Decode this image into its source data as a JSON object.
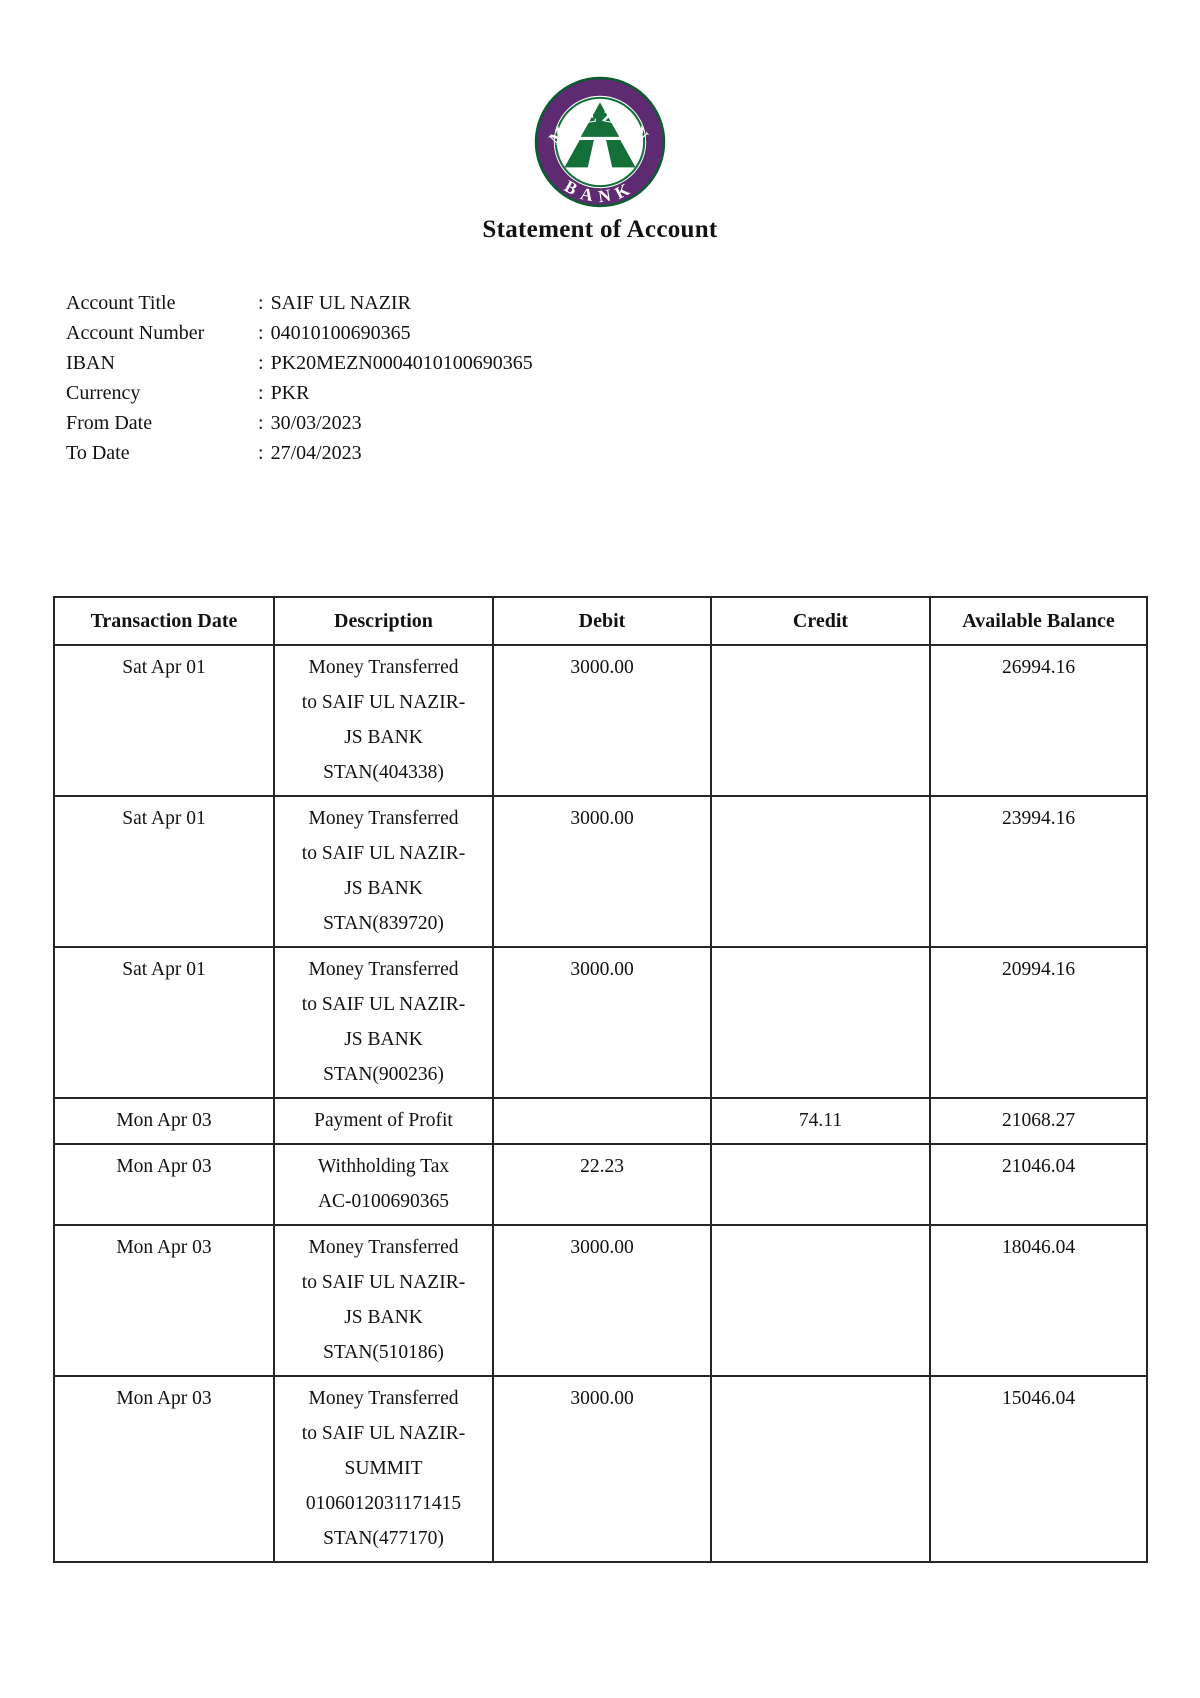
{
  "title": "Statement of Account",
  "logo": {
    "top_text": "MEEZAN",
    "bottom_text": "BANK",
    "purple": "#5e2a72",
    "green": "#156f39",
    "dark_green": "#0c5c30"
  },
  "account_info": {
    "separator": ":",
    "rows": [
      {
        "label": "Account Title",
        "value": "SAIF UL NAZIR"
      },
      {
        "label": "Account Number",
        "value": "04010100690365"
      },
      {
        "label": "IBAN",
        "value": "PK20MEZN0004010100690365"
      },
      {
        "label": "Currency",
        "value": "PKR"
      },
      {
        "label": "From Date",
        "value": "30/03/2023"
      },
      {
        "label": "To Date",
        "value": "27/04/2023"
      }
    ]
  },
  "table": {
    "headers": [
      "Transaction Date",
      "Description",
      "Debit",
      "Credit",
      "Available Balance"
    ],
    "rows": [
      {
        "date": "Sat Apr 01",
        "description": [
          "Money Transferred",
          "to SAIF UL NAZIR-",
          "JS BANK",
          "STAN(404338)"
        ],
        "debit": "3000.00",
        "credit": "",
        "balance": "26994.16"
      },
      {
        "date": "Sat Apr 01",
        "description": [
          "Money Transferred",
          "to SAIF UL NAZIR-",
          "JS BANK",
          "STAN(839720)"
        ],
        "debit": "3000.00",
        "credit": "",
        "balance": "23994.16"
      },
      {
        "date": "Sat Apr 01",
        "description": [
          "Money Transferred",
          "to SAIF UL NAZIR-",
          "JS BANK",
          "STAN(900236)"
        ],
        "debit": "3000.00",
        "credit": "",
        "balance": "20994.16"
      },
      {
        "date": "Mon Apr 03",
        "description": [
          "Payment of Profit"
        ],
        "debit": "",
        "credit": "74.11",
        "balance": "21068.27"
      },
      {
        "date": "Mon Apr 03",
        "description": [
          "Withholding Tax",
          "AC-0100690365"
        ],
        "debit": "22.23",
        "credit": "",
        "balance": "21046.04"
      },
      {
        "date": "Mon Apr 03",
        "description": [
          "Money Transferred",
          "to SAIF UL NAZIR-",
          "JS BANK",
          "STAN(510186)"
        ],
        "debit": "3000.00",
        "credit": "",
        "balance": "18046.04"
      },
      {
        "date": "Mon Apr 03",
        "description": [
          "Money Transferred",
          "to SAIF UL NAZIR-",
          "SUMMIT",
          "0106012031171415",
          "STAN(477170)"
        ],
        "debit": "3000.00",
        "credit": "",
        "balance": "15046.04"
      }
    ]
  }
}
